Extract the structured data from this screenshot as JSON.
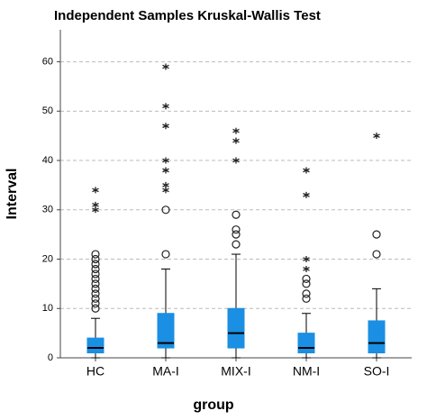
{
  "chart_data": {
    "type": "box",
    "title": "Independent Samples Kruskal-Wallis Test",
    "xlabel": "group",
    "ylabel": "Interval",
    "categories": [
      "HC",
      "MA-I",
      "MIX-I",
      "NM-I",
      "SO-I"
    ],
    "color": "#1a8fe3",
    "boxes": [
      {
        "min": 0,
        "q1": 1,
        "median": 2,
        "q3": 4,
        "max": 8,
        "outliers": [
          10,
          11,
          12,
          13,
          14,
          15,
          16,
          17,
          18,
          19,
          20,
          21
        ],
        "extremes": [
          30,
          31,
          34
        ]
      },
      {
        "min": 0,
        "q1": 2,
        "median": 3,
        "q3": 9,
        "max": 18,
        "outliers": [
          21,
          30
        ],
        "extremes": [
          34,
          35,
          38,
          40,
          47,
          51,
          59
        ]
      },
      {
        "min": 0,
        "q1": 2,
        "median": 5,
        "q3": 10,
        "max": 21,
        "outliers": [
          23,
          25,
          26,
          29
        ],
        "extremes": [
          40,
          44,
          46
        ]
      },
      {
        "min": 0,
        "q1": 1,
        "median": 2,
        "q3": 5,
        "max": 9,
        "outliers": [
          12,
          13,
          15,
          16
        ],
        "extremes": [
          18,
          20,
          33,
          38
        ]
      },
      {
        "min": 0,
        "q1": 1,
        "median": 3,
        "q3": 7.5,
        "max": 14,
        "outliers": [
          21,
          25
        ],
        "extremes": [
          45
        ]
      }
    ],
    "ylim": [
      0,
      66.5
    ],
    "yticks": [
      0,
      10,
      20,
      30,
      40,
      50,
      60
    ],
    "grid": true
  }
}
